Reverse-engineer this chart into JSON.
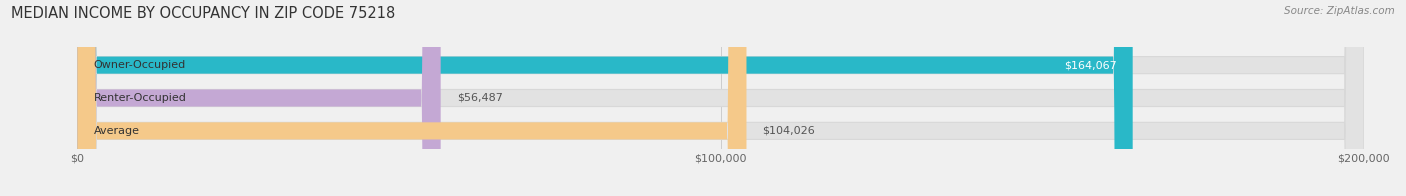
{
  "title": "MEDIAN INCOME BY OCCUPANCY IN ZIP CODE 75218",
  "source": "Source: ZipAtlas.com",
  "categories": [
    "Owner-Occupied",
    "Renter-Occupied",
    "Average"
  ],
  "values": [
    164067,
    56487,
    104026
  ],
  "labels": [
    "$164,067",
    "$56,487",
    "$104,026"
  ],
  "bar_colors": [
    "#29b8c8",
    "#c4a8d4",
    "#f5c98a"
  ],
  "background_color": "#f0f0f0",
  "bar_bg_color": "#e2e2e2",
  "xlim": [
    0,
    200000
  ],
  "xticks": [
    0,
    100000,
    200000
  ],
  "xtick_labels": [
    "$0",
    "$100,000",
    "$200,000"
  ],
  "title_fontsize": 10.5,
  "label_fontsize": 8.0,
  "tick_fontsize": 8.0,
  "source_fontsize": 7.5,
  "bar_height": 0.52,
  "figsize": [
    14.06,
    1.96
  ],
  "dpi": 100
}
